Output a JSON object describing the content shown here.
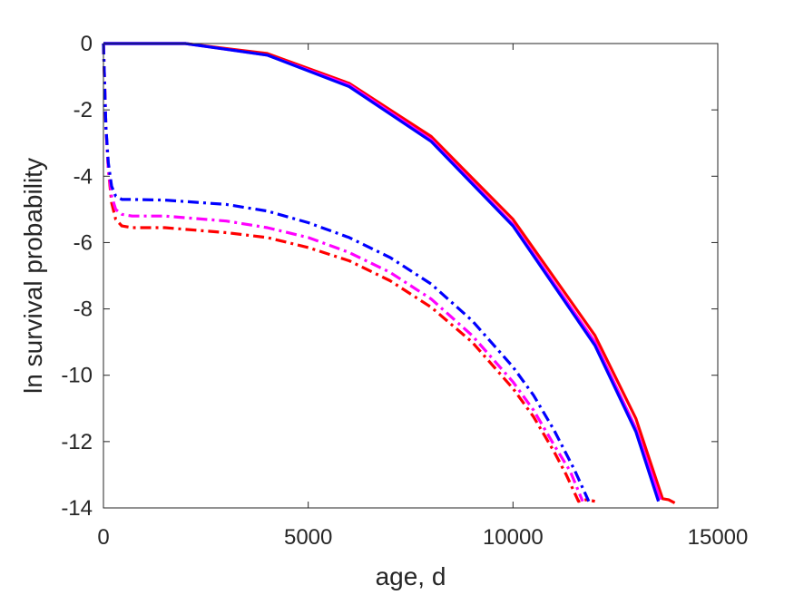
{
  "chart_data": {
    "type": "line",
    "xlabel": "age, d",
    "ylabel": "ln survival probability",
    "xlim": [
      0,
      15000
    ],
    "ylim": [
      -14,
      0
    ],
    "xticks": [
      0,
      5000,
      10000,
      15000
    ],
    "xtick_labels": [
      "0",
      "5000",
      "10000",
      "15000"
    ],
    "yticks": [
      0,
      -2,
      -4,
      -6,
      -8,
      -10,
      -12,
      -14
    ],
    "ytick_labels": [
      "0",
      "-2",
      "-4",
      "-6",
      "-8",
      "-10",
      "-12",
      "-14"
    ],
    "grid": false,
    "box": true,
    "series": [
      {
        "color": "#ff0000",
        "style": "solid",
        "x": [
          0,
          2000,
          4000,
          6000,
          8000,
          10000,
          12000,
          13000,
          13650,
          13800,
          13950
        ],
        "y": [
          0,
          0,
          -0.3,
          -1.2,
          -2.8,
          -5.3,
          -8.8,
          -11.3,
          -13.72,
          -13.75,
          -13.85
        ]
      },
      {
        "color": "#ff00ff",
        "style": "solid",
        "x": [
          0,
          2000,
          4000,
          6000,
          8000,
          10000,
          12000,
          13000,
          13600
        ],
        "y": [
          0,
          0,
          -0.35,
          -1.25,
          -2.9,
          -5.45,
          -9.0,
          -11.6,
          -13.75
        ]
      },
      {
        "color": "#0000ff",
        "style": "solid",
        "x": [
          0,
          2000,
          4000,
          6000,
          8000,
          10000,
          12000,
          13000,
          13550
        ],
        "y": [
          0,
          0,
          -0.35,
          -1.3,
          -2.95,
          -5.5,
          -9.1,
          -11.7,
          -13.8
        ]
      },
      {
        "color": "#ff0000",
        "style": "dashdot",
        "x": [
          0,
          60,
          120,
          200,
          300,
          450,
          700,
          1500,
          3000,
          4000,
          5000,
          6000,
          7000,
          8000,
          9000,
          10000,
          10500,
          11000,
          11300,
          11600,
          11800,
          12000
        ],
        "y": [
          0,
          -2.5,
          -3.8,
          -4.8,
          -5.3,
          -5.5,
          -5.55,
          -5.55,
          -5.7,
          -5.85,
          -6.15,
          -6.55,
          -7.15,
          -7.95,
          -9.0,
          -10.4,
          -11.25,
          -12.3,
          -13.0,
          -13.8,
          -13.75,
          -13.8
        ]
      },
      {
        "color": "#ff00ff",
        "style": "dashdot",
        "x": [
          0,
          60,
          120,
          200,
          300,
          450,
          700,
          1500,
          3000,
          4000,
          5000,
          6000,
          7000,
          8000,
          9000,
          10000,
          10500,
          11000,
          11400,
          11700
        ],
        "y": [
          0,
          -2.5,
          -3.8,
          -4.6,
          -5.0,
          -5.15,
          -5.2,
          -5.2,
          -5.35,
          -5.55,
          -5.85,
          -6.3,
          -6.9,
          -7.7,
          -8.8,
          -10.2,
          -11.05,
          -12.1,
          -12.9,
          -13.8
        ]
      },
      {
        "color": "#0000ff",
        "style": "dashdot",
        "x": [
          0,
          60,
          120,
          200,
          300,
          450,
          700,
          1500,
          3000,
          4000,
          5000,
          6000,
          7000,
          8000,
          9000,
          10000,
          10500,
          11000,
          11500,
          11850
        ],
        "y": [
          0,
          -2.5,
          -3.6,
          -4.3,
          -4.6,
          -4.7,
          -4.7,
          -4.72,
          -4.85,
          -5.05,
          -5.4,
          -5.85,
          -6.45,
          -7.25,
          -8.35,
          -9.75,
          -10.6,
          -11.65,
          -12.85,
          -13.8
        ]
      }
    ]
  }
}
